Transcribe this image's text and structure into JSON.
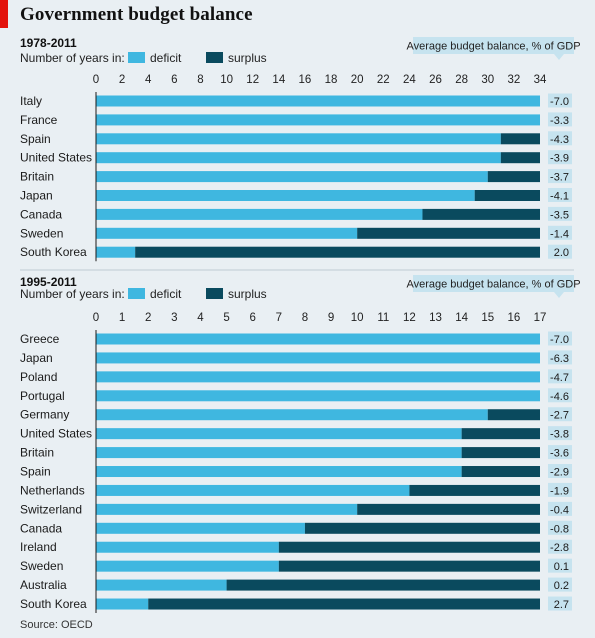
{
  "title": "Government budget balance",
  "source": "Source: OECD",
  "colors": {
    "deficit": "#3fb7e0",
    "surplus": "#0a4a5e",
    "label_box": "#c6e3ef",
    "background": "#e9eff3",
    "brand_red": "#e3120b"
  },
  "chart_data": [
    {
      "type": "bar",
      "orientation": "horizontal",
      "stacked": true,
      "period": "1978-2011",
      "measure_label": "Number of years in:",
      "series_labels": [
        "deficit",
        "surplus"
      ],
      "xlim": [
        0,
        34
      ],
      "xticks": [
        0,
        2,
        4,
        6,
        8,
        10,
        12,
        14,
        16,
        18,
        20,
        22,
        24,
        26,
        28,
        30,
        32,
        34
      ],
      "side_header": "Average budget balance, % of GDP",
      "categories": [
        "Italy",
        "France",
        "Spain",
        "United States",
        "Britain",
        "Japan",
        "Canada",
        "Sweden",
        "South Korea"
      ],
      "series": [
        {
          "name": "deficit",
          "values": [
            34,
            34,
            31,
            31,
            30,
            29,
            25,
            20,
            3
          ]
        },
        {
          "name": "surplus",
          "values": [
            0,
            0,
            3,
            3,
            4,
            5,
            9,
            14,
            31
          ]
        }
      ],
      "avg_balance": [
        "-7.0",
        "-3.3",
        "-4.3",
        "-3.9",
        "-3.7",
        "-4.1",
        "-3.5",
        "-1.4",
        "2.0"
      ]
    },
    {
      "type": "bar",
      "orientation": "horizontal",
      "stacked": true,
      "period": "1995-2011",
      "measure_label": "Number of years in:",
      "series_labels": [
        "deficit",
        "surplus"
      ],
      "xlim": [
        0,
        17
      ],
      "xticks": [
        0,
        1,
        2,
        3,
        4,
        5,
        6,
        7,
        8,
        9,
        10,
        11,
        12,
        13,
        14,
        15,
        16,
        17
      ],
      "side_header": "Average budget balance, % of GDP",
      "categories": [
        "Greece",
        "Japan",
        "Poland",
        "Portugal",
        "Germany",
        "United States",
        "Britain",
        "Spain",
        "Netherlands",
        "Switzerland",
        "Canada",
        "Ireland",
        "Sweden",
        "Australia",
        "South Korea"
      ],
      "series": [
        {
          "name": "deficit",
          "values": [
            17,
            17,
            17,
            17,
            15,
            14,
            14,
            14,
            12,
            10,
            8,
            7,
            7,
            5,
            2
          ]
        },
        {
          "name": "surplus",
          "values": [
            0,
            0,
            0,
            0,
            2,
            3,
            3,
            3,
            5,
            7,
            9,
            10,
            10,
            12,
            15
          ]
        }
      ],
      "avg_balance": [
        "-7.0",
        "-6.3",
        "-4.7",
        "-4.6",
        "-2.7",
        "-3.8",
        "-3.6",
        "-2.9",
        "-1.9",
        "-0.4",
        "-0.8",
        "-2.8",
        "0.1",
        "0.2",
        "2.7"
      ]
    }
  ]
}
